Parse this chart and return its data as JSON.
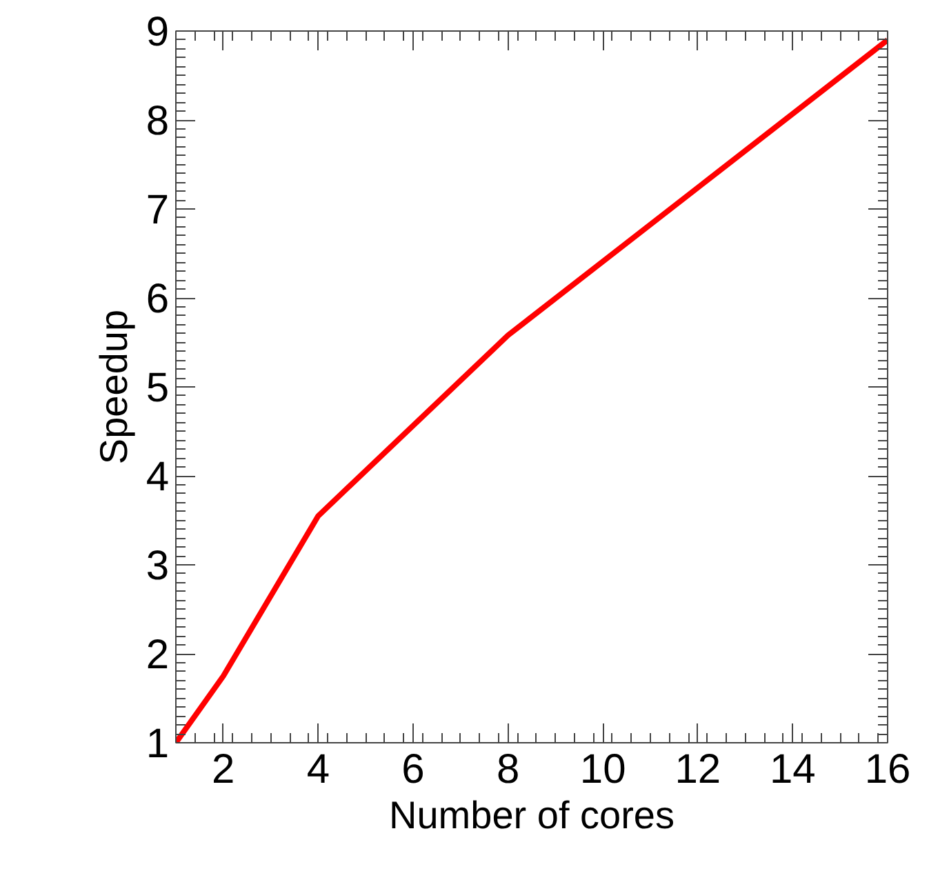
{
  "chart_data": {
    "type": "line",
    "xlabel": "Number of cores",
    "ylabel": "Speedup",
    "x": [
      1,
      2,
      4,
      8,
      16
    ],
    "series": [
      {
        "color": "#ff0000",
        "values": [
          1,
          1.75,
          3.55,
          5.58,
          8.9
        ]
      }
    ],
    "xlim": [
      1,
      16
    ],
    "ylim": [
      1,
      9
    ],
    "xticks": [
      2,
      4,
      6,
      8,
      10,
      12,
      14,
      16
    ],
    "yticks": [
      1,
      2,
      3,
      4,
      5,
      6,
      7,
      8,
      9
    ],
    "grid": false,
    "marker": "none",
    "line_style": "solid"
  }
}
